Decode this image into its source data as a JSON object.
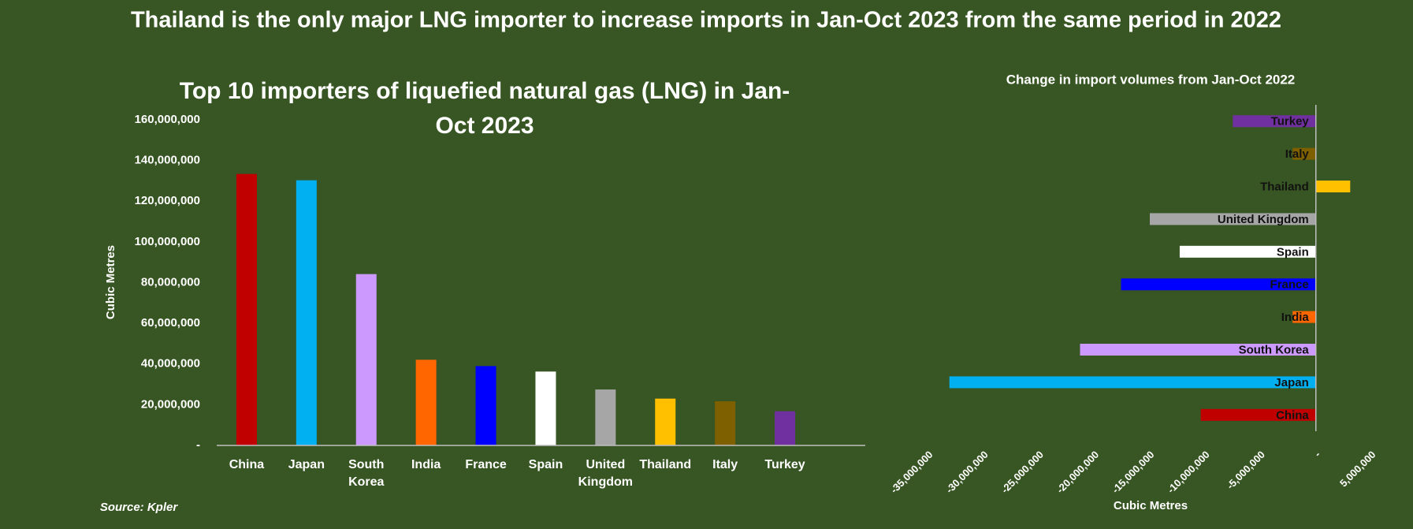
{
  "title": "Thailand is the only major LNG importer to increase imports in Jan-Oct 2023 from the same period in 2022",
  "source": "Source: Kpler",
  "chart_data": [
    {
      "type": "bar",
      "title": "Top 10 importers of liquefied natural gas (LNG) in Jan-Oct 2023",
      "y_label": "Cubic Metres",
      "categories": [
        "China",
        "Japan",
        "South Korea",
        "India",
        "France",
        "Spain",
        "United Kingdom",
        "Thailand",
        "Italy",
        "Turkey"
      ],
      "values": [
        133400000,
        130300000,
        84200000,
        42100000,
        39000000,
        36300000,
        27500000,
        23000000,
        21700000,
        16800000
      ],
      "colors": [
        "#c00000",
        "#00b0f0",
        "#cc99ff",
        "#ff6600",
        "#0000ff",
        "#ffffff",
        "#a6a6a6",
        "#ffc000",
        "#7f6000",
        "#7030a0"
      ],
      "ylim": [
        0,
        160000000
      ],
      "yticks": [
        {
          "value": 0,
          "label": "-"
        },
        {
          "value": 20000000,
          "label": "20,000,000"
        },
        {
          "value": 40000000,
          "label": "40,000,000"
        },
        {
          "value": 60000000,
          "label": "60,000,000"
        },
        {
          "value": 80000000,
          "label": "80,000,000"
        },
        {
          "value": 100000000,
          "label": "100,000,000"
        },
        {
          "value": 120000000,
          "label": "120,000,000"
        },
        {
          "value": 140000000,
          "label": "140,000,000"
        },
        {
          "value": 160000000,
          "label": "160,000,000"
        }
      ],
      "grid": false
    },
    {
      "type": "hbar",
      "title": "Change in import volumes from Jan-Oct 2022",
      "x_label": "Cubic Metres",
      "categories": [
        "Turkey",
        "Italy",
        "Thailand",
        "United Kingdom",
        "Spain",
        "France",
        "India",
        "South Korea",
        "Japan",
        "China"
      ],
      "values": [
        -7500000,
        -2100000,
        3100000,
        -15000000,
        -12300000,
        -17600000,
        -2100000,
        -21300000,
        -33100000,
        -10400000
      ],
      "colors": [
        "#7030a0",
        "#7f6000",
        "#ffc000",
        "#a6a6a6",
        "#ffffff",
        "#0000ff",
        "#ff6600",
        "#cc99ff",
        "#00b0f0",
        "#c00000"
      ],
      "xlim": [
        -35000000,
        5000000
      ],
      "xticks": [
        {
          "value": -35000000,
          "label": "-35,000,000"
        },
        {
          "value": -30000000,
          "label": "-30,000,000"
        },
        {
          "value": -25000000,
          "label": "-25,000,000"
        },
        {
          "value": -20000000,
          "label": "-20,000,000"
        },
        {
          "value": -15000000,
          "label": "-15,000,000"
        },
        {
          "value": -10000000,
          "label": "-10,000,000"
        },
        {
          "value": -5000000,
          "label": "-5,000,000"
        },
        {
          "value": 0,
          "label": "-"
        },
        {
          "value": 5000000,
          "label": "5,000,000"
        }
      ],
      "grid": false
    }
  ]
}
